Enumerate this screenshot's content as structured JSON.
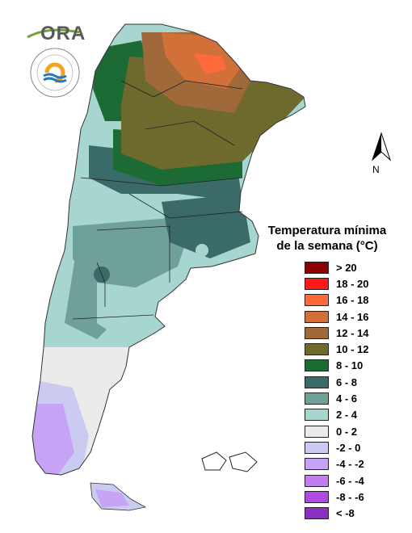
{
  "logo": {
    "text": "ORA"
  },
  "north": {
    "label": "N"
  },
  "legend": {
    "title_line1": "Temperatura mínima",
    "title_line2": "de la semana (°C)",
    "items": [
      {
        "label": "> 20",
        "color": "#8b0000"
      },
      {
        "label": "18 - 20",
        "color": "#ff1a1a"
      },
      {
        "label": "16 - 18",
        "color": "#ff6a3a"
      },
      {
        "label": "14 - 16",
        "color": "#d2703a"
      },
      {
        "label": "12 - 14",
        "color": "#a0693a"
      },
      {
        "label": "10 - 12",
        "color": "#6e6a2e"
      },
      {
        "label": "8 - 10",
        "color": "#1c6a34"
      },
      {
        "label": "6 - 8",
        "color": "#3a6b68"
      },
      {
        "label": "4 - 6",
        "color": "#6fa09a"
      },
      {
        "label": "2 - 4",
        "color": "#a6d6cf"
      },
      {
        "label": "0 - 2",
        "color": "#ebebea"
      },
      {
        "label": "-2 - 0",
        "color": "#cbcbf2"
      },
      {
        "label": "-4 - -2",
        "color": "#c6a3f5"
      },
      {
        "label": "-6 - -4",
        "color": "#bf7cf3"
      },
      {
        "label": "-8 - -6",
        "color": "#b04ae6"
      },
      {
        "label": "< -8",
        "color": "#8a2ec4"
      }
    ]
  }
}
